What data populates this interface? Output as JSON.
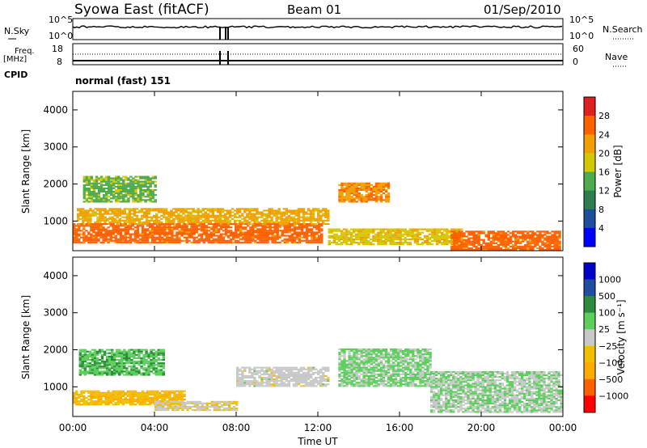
{
  "header": {
    "station": "Syowa East (fitACF)",
    "beam": "Beam 01",
    "date": "01/Sep/2010"
  },
  "status_panel": {
    "left_label_top": "N.Sky",
    "left_label_mid_1": "Freq.",
    "left_label_mid_2": "[MHz]",
    "left_label_cpid": "CPID",
    "right_label_top": "N.Search",
    "right_label_mid": "Nave",
    "nsky_ticks": [
      "10^5",
      "10^0"
    ],
    "freq_ticks": [
      "18",
      "8"
    ],
    "nave_ticks": [
      "60",
      "0"
    ],
    "cpid_text": "normal (fast) 151"
  },
  "colors": {
    "power": [
      "#0000ff",
      "#1f4e9f",
      "#2e7d4f",
      "#4daa4d",
      "#d4c800",
      "#f0a000",
      "#ff6000",
      "#e02020"
    ],
    "velocity": [
      "#ff0000",
      "#ff6000",
      "#ffaa00",
      "#f0c000",
      "#c8c8c8",
      "#5ad05a",
      "#2e8b3e",
      "#1f4e9f",
      "#0000cc"
    ]
  },
  "chart_data": [
    {
      "type": "heatmap",
      "name": "power",
      "title": "",
      "xlabel": "",
      "ylabel": "Slant Range [km]",
      "xlim": [
        "00:00",
        "00:00"
      ],
      "ylim": [
        200,
        4500
      ],
      "x_ticks": [
        "00:00",
        "04:00",
        "08:00",
        "12:00",
        "16:00",
        "20:00",
        "00:00"
      ],
      "y_ticks": [
        "1000",
        "2000",
        "3000",
        "4000"
      ],
      "colorbar_label": "Power [dB]",
      "colorbar_ticks": [
        "4",
        "8",
        "12",
        "16",
        "20",
        "24",
        "28"
      ],
      "value_range": [
        0,
        30
      ],
      "regions": [
        {
          "t": [
            0.2,
            12.5
          ],
          "r": [
            900,
            1350
          ],
          "v": 20
        },
        {
          "t": [
            0.0,
            12.2
          ],
          "r": [
            400,
            900
          ],
          "v": 24
        },
        {
          "t": [
            12.5,
            19.0
          ],
          "r": [
            350,
            800
          ],
          "v": 18
        },
        {
          "t": [
            13.0,
            15.5
          ],
          "r": [
            1500,
            2000
          ],
          "v": 22
        },
        {
          "t": [
            18.5,
            23.9
          ],
          "r": [
            200,
            700
          ],
          "v": 24
        },
        {
          "t": [
            0.5,
            4.0
          ],
          "r": [
            1500,
            2200
          ],
          "v": 14
        }
      ]
    },
    {
      "type": "heatmap",
      "name": "velocity",
      "title": "",
      "xlabel": "Time UT",
      "ylabel": "Slant Range [km]",
      "xlim": [
        "00:00",
        "00:00"
      ],
      "ylim": [
        200,
        4500
      ],
      "x_ticks": [
        "00:00",
        "04:00",
        "08:00",
        "12:00",
        "16:00",
        "20:00",
        "00:00"
      ],
      "y_ticks": [
        "1000",
        "2000",
        "3000",
        "4000"
      ],
      "colorbar_label": "Velocity [m s⁻¹]",
      "colorbar_ticks": [
        "1000",
        "500",
        "100",
        "25",
        "−25",
        "−100",
        "−500",
        "−1000"
      ],
      "value_range": [
        -1000,
        1000
      ],
      "regions": [
        {
          "t": [
            0.0,
            5.5
          ],
          "r": [
            500,
            900
          ],
          "v": -300
        },
        {
          "t": [
            4.0,
            8.0
          ],
          "r": [
            350,
            600
          ],
          "v": -80
        },
        {
          "t": [
            8.0,
            12.5
          ],
          "r": [
            1000,
            1500
          ],
          "v": 0
        },
        {
          "t": [
            13.0,
            17.5
          ],
          "r": [
            1000,
            2000
          ],
          "v": 150
        },
        {
          "t": [
            17.5,
            23.9
          ],
          "r": [
            300,
            1400
          ],
          "v": 100
        },
        {
          "t": [
            0.3,
            4.5
          ],
          "r": [
            1300,
            2000
          ],
          "v": 300
        }
      ]
    }
  ]
}
